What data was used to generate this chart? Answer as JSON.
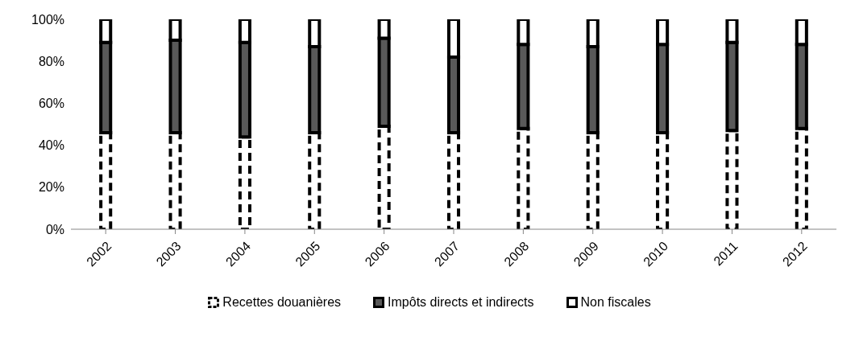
{
  "chart_data": {
    "type": "bar",
    "stacked": true,
    "categories": [
      "2002",
      "2003",
      "2004",
      "2005",
      "2006",
      "2007",
      "2008",
      "2009",
      "2010",
      "2011",
      "2012"
    ],
    "series": [
      {
        "name": "Recettes douanières",
        "color": "#ffffff",
        "line_style": "dashed",
        "values": [
          46,
          46,
          44,
          46,
          49,
          46,
          48,
          46,
          46,
          47,
          48
        ]
      },
      {
        "name": "Impôts directs et indirects",
        "color": "#595959",
        "line_style": "solid",
        "values": [
          43,
          44,
          45,
          41,
          42,
          36,
          40,
          41,
          42,
          42,
          40
        ]
      },
      {
        "name": "Non fiscales",
        "color": "#ffffff",
        "line_style": "solid",
        "values": [
          11,
          10,
          11,
          13,
          9,
          18,
          12,
          13,
          12,
          11,
          12
        ]
      }
    ],
    "ylim": [
      0,
      100
    ],
    "yticks": [
      {
        "value": 0,
        "label": "0%"
      },
      {
        "value": 20,
        "label": "20%"
      },
      {
        "value": 40,
        "label": "40%"
      },
      {
        "value": 60,
        "label": "60%"
      },
      {
        "value": 80,
        "label": "80%"
      },
      {
        "value": 100,
        "label": "100%"
      }
    ],
    "grid": false,
    "legend": "bottom"
  }
}
